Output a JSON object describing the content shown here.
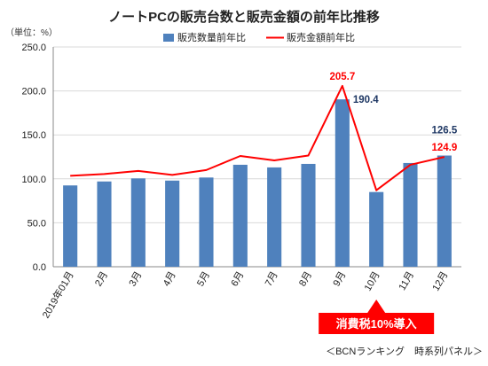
{
  "chart_data": {
    "type": "bar",
    "title": "ノートPCの販売台数と販売金額の前年比推移",
    "unit_label": "（単位：%）",
    "categories": [
      "2019年01月",
      "2月",
      "3月",
      "4月",
      "5月",
      "6月",
      "7月",
      "8月",
      "9月",
      "10月",
      "11月",
      "12月"
    ],
    "series": [
      {
        "name": "販売数量前年比",
        "type": "bar",
        "color": "#4f81bd",
        "values": [
          92.5,
          97.0,
          100.5,
          98.0,
          101.5,
          116.0,
          113.0,
          117.0,
          190.4,
          85.0,
          118.0,
          126.5
        ]
      },
      {
        "name": "販売金額前年比",
        "type": "line",
        "color": "#ff0000",
        "values": [
          103.5,
          105.5,
          109.0,
          104.5,
          110.0,
          126.0,
          121.0,
          126.5,
          205.7,
          87.0,
          116.0,
          124.9
        ]
      }
    ],
    "data_labels": [
      {
        "series": 1,
        "index": 8,
        "text": "205.7",
        "color": "#ff0000"
      },
      {
        "series": 0,
        "index": 8,
        "text": "190.4",
        "color": "#1f3864"
      },
      {
        "series": 0,
        "index": 11,
        "text": "126.5",
        "color": "#1f3864"
      },
      {
        "series": 1,
        "index": 11,
        "text": "124.9",
        "color": "#ff0000"
      }
    ],
    "yticks": [
      "0.0",
      "50.0",
      "100.0",
      "150.0",
      "200.0",
      "250.0"
    ],
    "ylim": [
      0,
      250
    ],
    "grid": true,
    "legend_position": "top-center",
    "callout": {
      "text": "消費税10%導入",
      "index": 9,
      "color": "#ff0000"
    },
    "source": "＜BCNランキング　時系列パネル＞"
  }
}
